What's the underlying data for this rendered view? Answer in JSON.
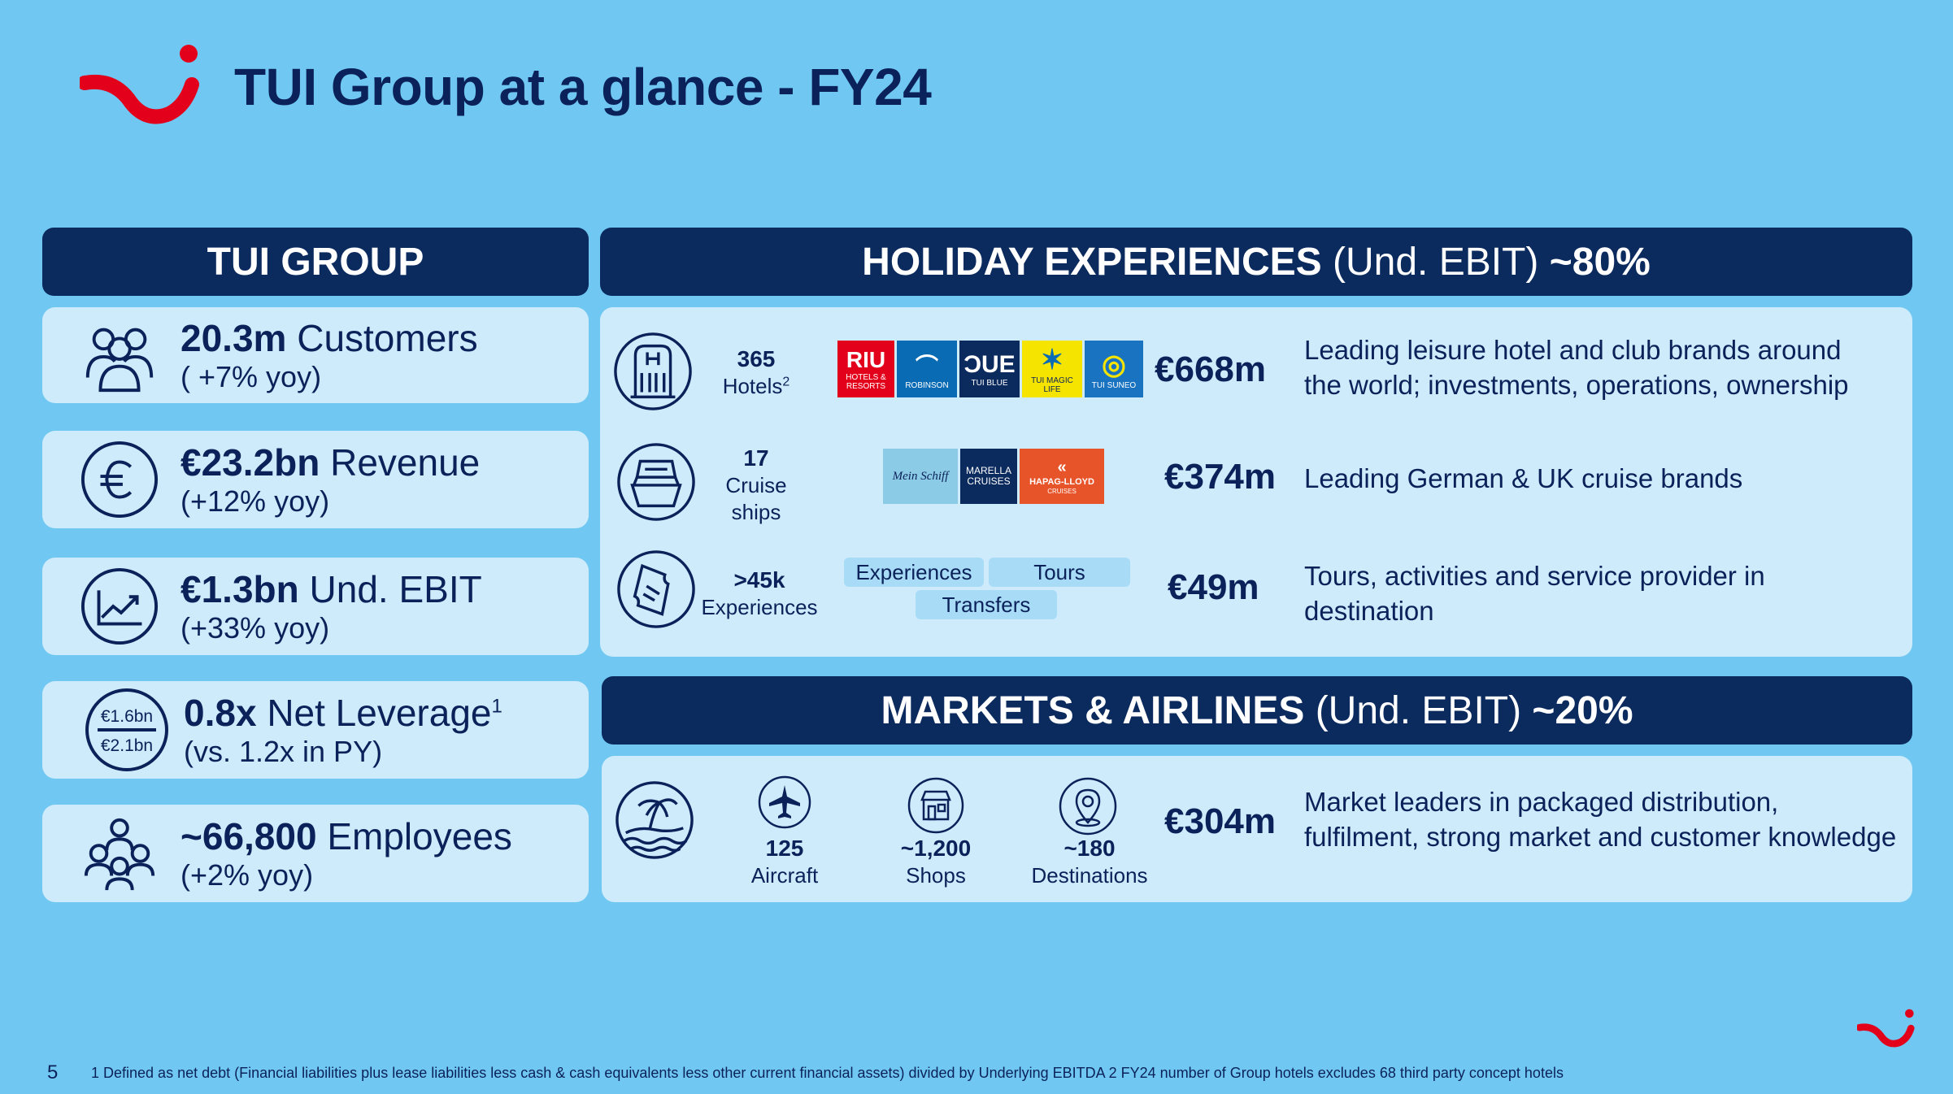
{
  "page": {
    "title": "TUI Group at a glance - FY24",
    "page_number": "5"
  },
  "group": {
    "header": "TUI GROUP",
    "kpis": [
      {
        "value": "20.3m",
        "label": "Customers",
        "sub": "( +7% yoy)",
        "icon": "customers-icon"
      },
      {
        "value": "€23.2bn",
        "label": "Revenue",
        "sub": "(+12% yoy)",
        "icon": "euro-icon"
      },
      {
        "value": "€1.3bn",
        "label": "Und. EBIT",
        "sub": "(+33% yoy)",
        "icon": "growth-chart-icon"
      },
      {
        "value": "0.8x",
        "label": "Net Leverage",
        "sup": "1",
        "sub": "(vs. 1.2x in PY)",
        "icon": "leverage-icon",
        "icon_top": "€1.6bn",
        "icon_bottom": "€2.1bn"
      },
      {
        "value": "~66,800",
        "label": "Employees",
        "sub": "(+2% yoy)",
        "icon": "employees-icon"
      }
    ]
  },
  "holiday": {
    "header_bold": "HOLIDAY EXPERIENCES",
    "header_normal": " (Und. EBIT) ",
    "header_pct": "~80%",
    "rows": [
      {
        "count": "365",
        "label": "Hotels",
        "sup": "2",
        "amount": "€668m",
        "desc1": "Leading leisure hotel and club brands around",
        "desc2": "the world; investments, operations, ownership",
        "icon": "hotel-icon"
      },
      {
        "count": "17",
        "label": "Cruise",
        "label2": "ships",
        "amount": "€374m",
        "desc1": "Leading German & UK cruise brands",
        "desc2": "",
        "icon": "cruise-ship-icon"
      },
      {
        "count": ">45k",
        "label": "Experiences",
        "amount": "€49m",
        "desc1": "Tours, activities and service provider in",
        "desc2": "destination",
        "icon": "ticket-icon"
      }
    ],
    "hotel_brands": [
      {
        "name": "RIU",
        "sub": "HOTELS & RESORTS",
        "color": "#e3001b"
      },
      {
        "name": "⌒",
        "sub": "ROBINSON",
        "color": "#0a6bb5"
      },
      {
        "name": "ƆUE",
        "sub": "TUI BLUE",
        "color": "#0b2a5e"
      },
      {
        "name": "✶",
        "sub": "TUI MAGIC LIFE",
        "color": "#f5e400"
      },
      {
        "name": "◎",
        "sub": "TUI SUNEO",
        "color": "#1a73c0"
      }
    ],
    "cruise_brands": [
      {
        "name": "Mein Schiff",
        "sub": "",
        "color": "#8ccbe6"
      },
      {
        "name": "MARELLA",
        "sub": "CRUISES",
        "color": "#0b2a5e"
      },
      {
        "name": "HAPAG-LLOYD",
        "sub": "CRUISES",
        "color": "#e8542a"
      }
    ],
    "tags": [
      "Experiences",
      "Tours",
      "Transfers"
    ]
  },
  "markets": {
    "header_bold": "MARKETS & AIRLINES",
    "header_normal": " (Und. EBIT) ",
    "header_pct": "~20%",
    "items": [
      {
        "count": "125",
        "label": "Aircraft",
        "icon": "aircraft-icon"
      },
      {
        "count": "~1,200",
        "label": "Shops",
        "icon": "shop-icon"
      },
      {
        "count": "~180",
        "label": "Destinations",
        "icon": "location-pin-icon"
      }
    ],
    "amount": "€304m",
    "desc1": "Market leaders in packaged distribution,",
    "desc2": "fulfilment, strong market and customer knowledge"
  },
  "footnote": "1 Defined as net debt (Financial liabilities plus lease liabilities less cash & cash equivalents less other current financial assets) divided by Underlying EBITDA 2 FY24 number of Group hotels excludes 68 third party concept hotels"
}
